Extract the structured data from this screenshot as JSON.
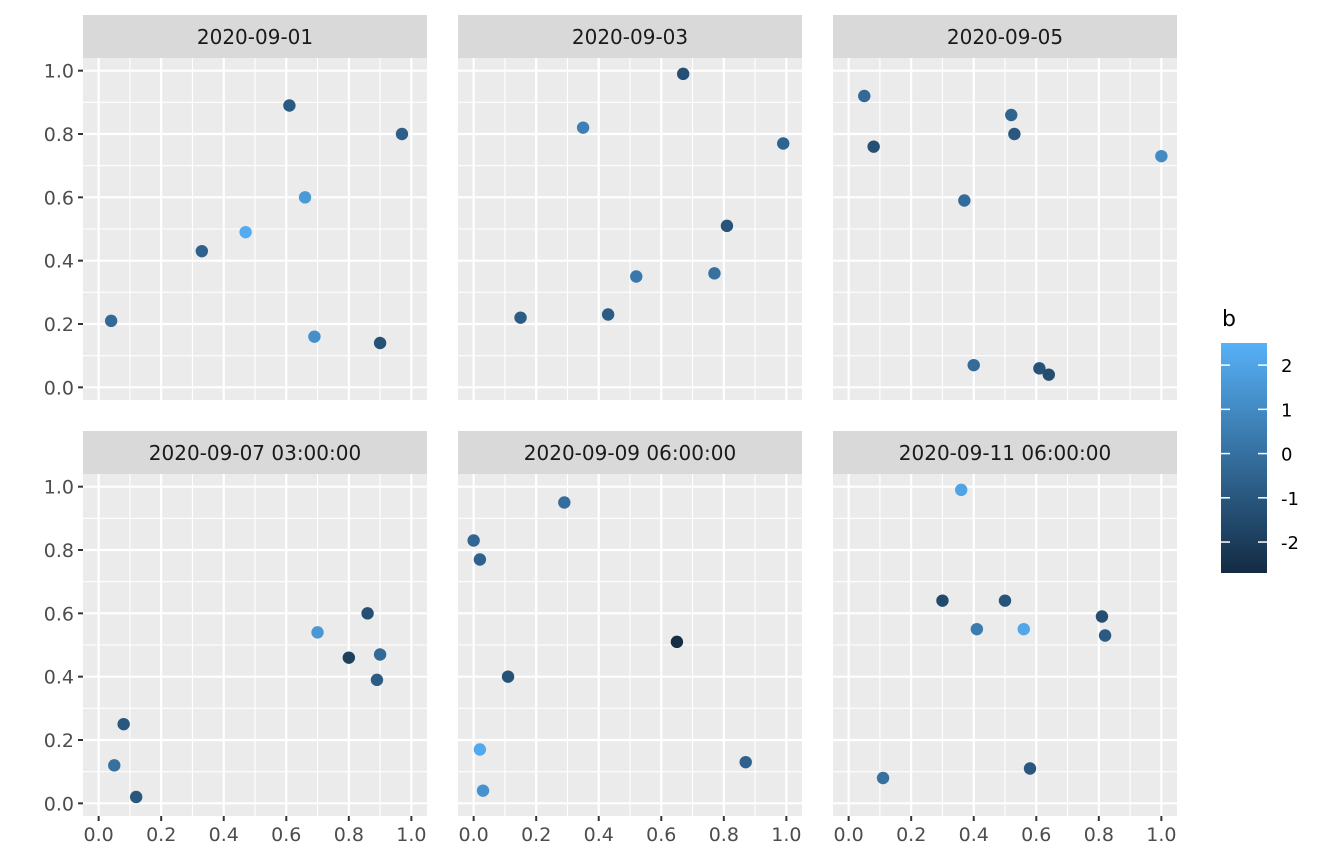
{
  "chart_data": {
    "type": "scatter",
    "facet_layout": "2x3",
    "x_ticks": [
      "0.0",
      "0.2",
      "0.4",
      "0.6",
      "0.8",
      "1.0"
    ],
    "y_ticks": [
      "0.0",
      "0.2",
      "0.4",
      "0.6",
      "0.8",
      "1.0"
    ],
    "xlim": [
      -0.05,
      1.05
    ],
    "ylim": [
      -0.04,
      1.04
    ],
    "grid": true,
    "legend": {
      "title": "b",
      "type": "colorbar",
      "position": "right",
      "range": [
        -2.7,
        2.5
      ],
      "ticks": [
        {
          "value": 2,
          "label": "2"
        },
        {
          "value": 1,
          "label": "1"
        },
        {
          "value": 0,
          "label": "0"
        },
        {
          "value": -1,
          "label": "-1"
        },
        {
          "value": -2,
          "label": "-2"
        }
      ],
      "low_color": "#132B43",
      "high_color": "#56B1F7"
    },
    "panels": [
      {
        "label": "2020-09-01",
        "points": [
          {
            "x": 0.04,
            "y": 0.21,
            "b": -0.3
          },
          {
            "x": 0.33,
            "y": 0.43,
            "b": -0.6
          },
          {
            "x": 0.47,
            "y": 0.49,
            "b": 2.3
          },
          {
            "x": 0.61,
            "y": 0.89,
            "b": -0.9
          },
          {
            "x": 0.66,
            "y": 0.6,
            "b": 1.6
          },
          {
            "x": 0.69,
            "y": 0.16,
            "b": 1.2
          },
          {
            "x": 0.9,
            "y": 0.14,
            "b": -1.2
          },
          {
            "x": 0.97,
            "y": 0.8,
            "b": -0.7
          }
        ]
      },
      {
        "label": "2020-09-03",
        "points": [
          {
            "x": 0.15,
            "y": 0.22,
            "b": -0.8
          },
          {
            "x": 0.35,
            "y": 0.82,
            "b": 0.6
          },
          {
            "x": 0.43,
            "y": 0.23,
            "b": -0.8
          },
          {
            "x": 0.52,
            "y": 0.35,
            "b": 0.3
          },
          {
            "x": 0.67,
            "y": 0.99,
            "b": -1.3
          },
          {
            "x": 0.77,
            "y": 0.36,
            "b": 0.0
          },
          {
            "x": 0.81,
            "y": 0.51,
            "b": -1.1
          },
          {
            "x": 0.99,
            "y": 0.77,
            "b": -0.5
          }
        ]
      },
      {
        "label": "2020-09-05",
        "points": [
          {
            "x": 0.05,
            "y": 0.92,
            "b": -0.3
          },
          {
            "x": 0.08,
            "y": 0.76,
            "b": -1.3
          },
          {
            "x": 0.37,
            "y": 0.59,
            "b": -0.2
          },
          {
            "x": 0.4,
            "y": 0.07,
            "b": -0.2
          },
          {
            "x": 0.52,
            "y": 0.86,
            "b": -0.5
          },
          {
            "x": 0.53,
            "y": 0.8,
            "b": -1.0
          },
          {
            "x": 0.61,
            "y": 0.06,
            "b": -1.2
          },
          {
            "x": 0.64,
            "y": 0.04,
            "b": -1.4
          },
          {
            "x": 1.0,
            "y": 0.73,
            "b": 1.0
          }
        ]
      },
      {
        "label": "2020-09-07 03:00:00",
        "points": [
          {
            "x": 0.05,
            "y": 0.12,
            "b": 0.0
          },
          {
            "x": 0.08,
            "y": 0.25,
            "b": -1.0
          },
          {
            "x": 0.12,
            "y": 0.02,
            "b": -1.0
          },
          {
            "x": 0.7,
            "y": 0.54,
            "b": 1.5
          },
          {
            "x": 0.8,
            "y": 0.46,
            "b": -1.9
          },
          {
            "x": 0.86,
            "y": 0.6,
            "b": -1.3
          },
          {
            "x": 0.89,
            "y": 0.39,
            "b": -0.8
          },
          {
            "x": 0.9,
            "y": 0.47,
            "b": -0.3
          }
        ]
      },
      {
        "label": "2020-09-09 06:00:00",
        "points": [
          {
            "x": 0.0,
            "y": 0.83,
            "b": -0.4
          },
          {
            "x": 0.02,
            "y": 0.77,
            "b": -0.6
          },
          {
            "x": 0.02,
            "y": 0.17,
            "b": 2.2
          },
          {
            "x": 0.03,
            "y": 0.04,
            "b": 1.3
          },
          {
            "x": 0.11,
            "y": 0.4,
            "b": -1.2
          },
          {
            "x": 0.29,
            "y": 0.95,
            "b": -0.1
          },
          {
            "x": 0.65,
            "y": 0.51,
            "b": -2.6
          },
          {
            "x": 0.87,
            "y": 0.13,
            "b": -0.6
          }
        ]
      },
      {
        "label": "2020-09-11 06:00:00",
        "points": [
          {
            "x": 0.11,
            "y": 0.08,
            "b": 0.0
          },
          {
            "x": 0.3,
            "y": 0.64,
            "b": -1.5
          },
          {
            "x": 0.36,
            "y": 0.99,
            "b": 2.0
          },
          {
            "x": 0.41,
            "y": 0.55,
            "b": 0.4
          },
          {
            "x": 0.5,
            "y": 0.64,
            "b": -1.1
          },
          {
            "x": 0.56,
            "y": 0.55,
            "b": 2.1
          },
          {
            "x": 0.58,
            "y": 0.11,
            "b": -1.0
          },
          {
            "x": 0.81,
            "y": 0.59,
            "b": -1.4
          },
          {
            "x": 0.82,
            "y": 0.53,
            "b": -0.9
          }
        ]
      }
    ]
  }
}
